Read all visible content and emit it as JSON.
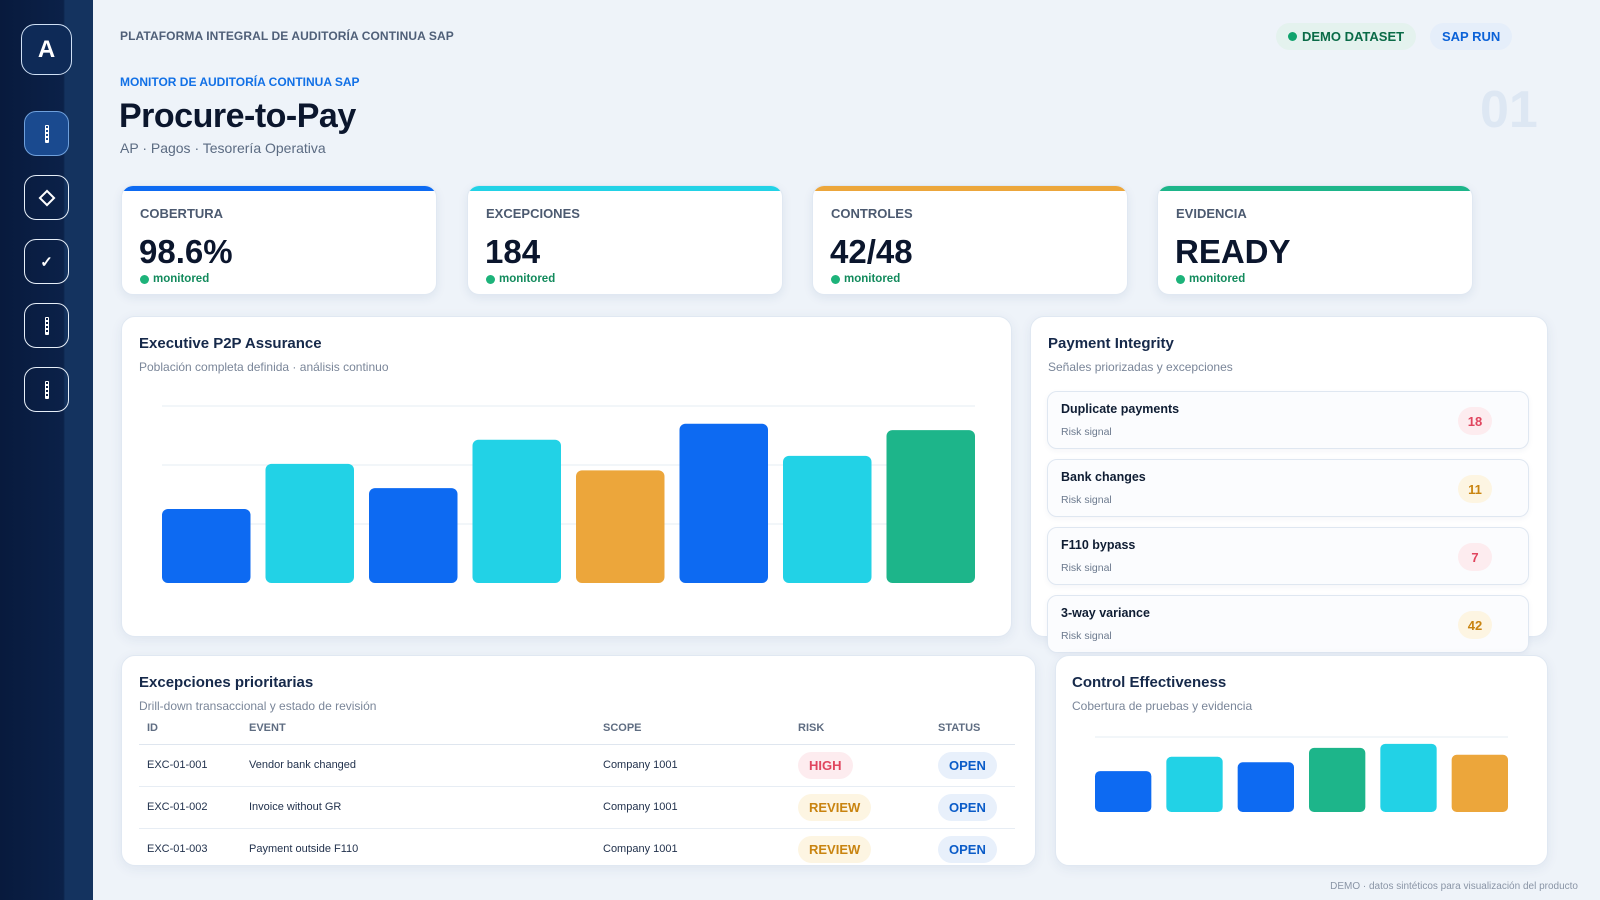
{
  "app": {
    "logo_letter": "A",
    "platform_title": "PLATAFORMA INTEGRAL DE AUDITORÍA CONTINUA SAP"
  },
  "header": {
    "demo_badge": "DEMO DATASET",
    "sap_badge": "SAP RUN",
    "kicker": "MONITOR DE AUDITORÍA CONTINUA SAP",
    "title": "Procure-to-Pay",
    "subtitle": "AP · Pagos · Tesorería Operativa",
    "page_number": "01"
  },
  "sidebar": {
    "items": [
      "bar-chart-icon",
      "diamond-icon",
      "check-icon",
      "bar-chart-icon",
      "bar-chart-icon"
    ],
    "active_index": 0
  },
  "kpis": [
    {
      "label": "COBERTURA",
      "value": "98.6%",
      "status": "monitored",
      "color": "#0d6af2"
    },
    {
      "label": "EXCEPCIONES",
      "value": "184",
      "status": "monitored",
      "color": "#22d2e6"
    },
    {
      "label": "CONTROLES",
      "value": "42/48",
      "status": "monitored",
      "color": "#eca63b"
    },
    {
      "label": "EVIDENCIA",
      "value": "READY",
      "status": "monitored",
      "color": "#1db58a"
    }
  ],
  "assurance": {
    "title": "Executive P2P Assurance",
    "subtitle": "Población completa definida · análisis continuo"
  },
  "payment": {
    "title": "Payment Integrity",
    "subtitle": "Señales priorizadas y excepciones",
    "signals": [
      {
        "name": "Duplicate payments",
        "sub": "Risk signal",
        "count": "18",
        "tone": "red"
      },
      {
        "name": "Bank changes",
        "sub": "Risk signal",
        "count": "11",
        "tone": "amber"
      },
      {
        "name": "F110 bypass",
        "sub": "Risk signal",
        "count": "7",
        "tone": "red"
      },
      {
        "name": "3-way variance",
        "sub": "Risk signal",
        "count": "42",
        "tone": "amber"
      }
    ]
  },
  "exceptions": {
    "title": "Excepciones prioritarias",
    "subtitle": "Drill-down transaccional y estado de revisión",
    "columns": [
      "ID",
      "EVENT",
      "SCOPE",
      "RISK",
      "STATUS"
    ],
    "rows": [
      [
        "EXC-01-001",
        "Vendor bank changed",
        "Company 1001",
        "HIGH",
        "OPEN"
      ],
      [
        "EXC-01-002",
        "Invoice without GR",
        "Company 1001",
        "REVIEW",
        "OPEN"
      ],
      [
        "EXC-01-003",
        "Payment outside F110",
        "Company 1001",
        "REVIEW",
        "OPEN"
      ]
    ]
  },
  "control": {
    "title": "Control Effectiveness",
    "subtitle": "Cobertura de pruebas y evidencia"
  },
  "footer": "DEMO · datos sintéticos para visualización del producto",
  "colors": {
    "blue": "#0d6af2",
    "cyan": "#22d2e6",
    "amber": "#eca63b",
    "green": "#1db58a"
  },
  "chart_data": [
    {
      "type": "bar",
      "categories": [
        "",
        "",
        "",
        "",
        "",
        "",
        "",
        ""
      ],
      "values": [
        46,
        74,
        59,
        89,
        70,
        99,
        79,
        95
      ],
      "colors": [
        "#0d6af2",
        "#22d2e6",
        "#0d6af2",
        "#22d2e6",
        "#eca63b",
        "#0d6af2",
        "#22d2e6",
        "#1db58a"
      ],
      "ylim": [
        0,
        110
      ],
      "grid": true
    },
    {
      "type": "bar",
      "categories": [
        "",
        "",
        "",
        "",
        "",
        ""
      ],
      "values": [
        60,
        81,
        73,
        94,
        100,
        84
      ],
      "colors": [
        "#0d6af2",
        "#22d2e6",
        "#0d6af2",
        "#1db58a",
        "#22d2e6",
        "#eca63b"
      ],
      "ylim": [
        0,
        110
      ],
      "grid": true
    }
  ]
}
